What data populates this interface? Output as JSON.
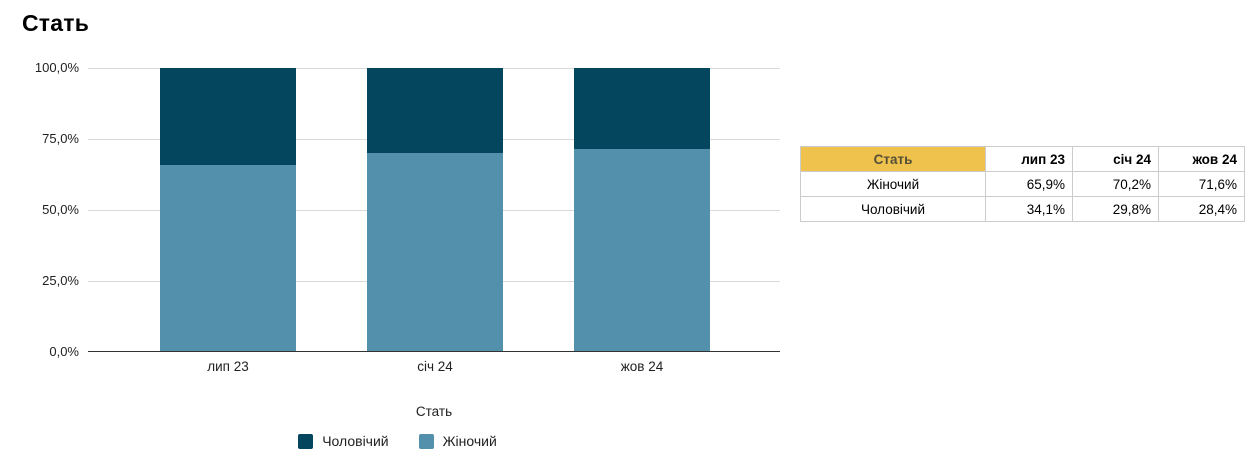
{
  "chart_data": {
    "type": "bar",
    "stacked": true,
    "title": "Стать",
    "xlabel": "Стать",
    "ylabel": "",
    "ylim": [
      0,
      100
    ],
    "grid": true,
    "legend_position": "bottom",
    "categories": [
      "лип 23",
      "січ 24",
      "жов 24"
    ],
    "series": [
      {
        "name": "Жіночий",
        "color": "#5290ac",
        "values": [
          65.9,
          70.2,
          71.6
        ]
      },
      {
        "name": "Чоловічий",
        "color": "#04465e",
        "values": [
          34.1,
          29.8,
          28.4
        ]
      }
    ],
    "yticks": [
      {
        "value": 0,
        "label": "0,0%"
      },
      {
        "value": 25,
        "label": "25,0%"
      },
      {
        "value": 50,
        "label": "50,0%"
      },
      {
        "value": 75,
        "label": "75,0%"
      },
      {
        "value": 100,
        "label": "100,0%"
      }
    ],
    "legend": [
      "Чоловічий",
      "Жіночий"
    ]
  },
  "table": {
    "columns": [
      "Стать",
      "лип 23",
      "січ 24",
      "жов 24"
    ],
    "rows": [
      {
        "label": "Жіночий",
        "values": [
          "65,9%",
          "70,2%",
          "71,6%"
        ]
      },
      {
        "label": "Чоловічий",
        "values": [
          "34,1%",
          "29,8%",
          "28,4%"
        ]
      }
    ]
  },
  "colors": {
    "male_series": "#04465e",
    "female_series": "#5290ac",
    "grid_line": "#d9d9d9",
    "axis_line": "#333333",
    "table_header_bg": "#efc14d",
    "table_header_text": "#554f38",
    "table_border": "#cccccc"
  }
}
